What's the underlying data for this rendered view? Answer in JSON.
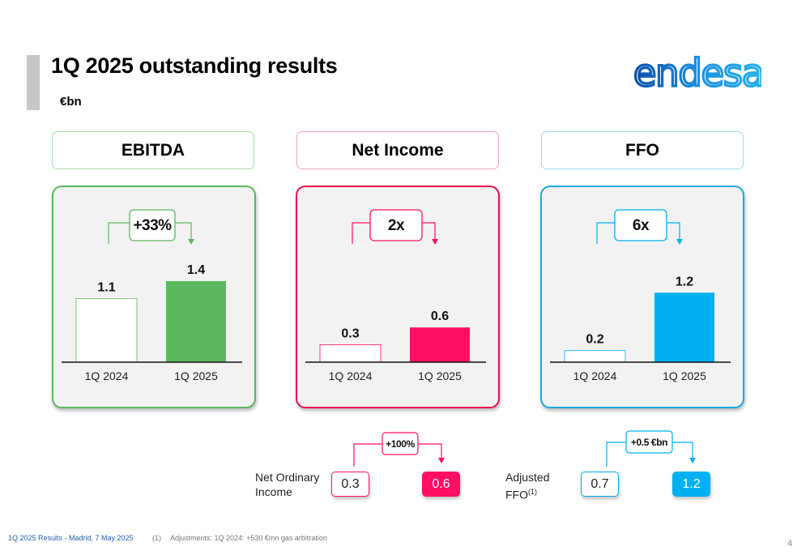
{
  "header": {
    "title": "1Q 2025 outstanding results",
    "unit": "€bn",
    "logo_text": "endesa"
  },
  "chart_data": [
    {
      "type": "bar",
      "title": "EBITDA",
      "categories": [
        "1Q 2024",
        "1Q 2025"
      ],
      "values": [
        1.1,
        1.4
      ],
      "value_labels": [
        "1.1",
        "1.4"
      ],
      "change_label": "+33%",
      "color": "#5cb85c",
      "border_color": "#5cb85c"
    },
    {
      "type": "bar",
      "title": "Net Income",
      "categories": [
        "1Q 2024",
        "1Q 2025"
      ],
      "values": [
        0.3,
        0.6
      ],
      "value_labels": [
        "0.3",
        "0.6"
      ],
      "change_label": "2x",
      "color": "#ff0f64",
      "border_color": "#e8114f"
    },
    {
      "type": "bar",
      "title": "FFO",
      "categories": [
        "1Q 2024",
        "1Q 2025"
      ],
      "values": [
        0.2,
        1.2
      ],
      "value_labels": [
        "0.2",
        "1.2"
      ],
      "change_label": "6x",
      "color": "#00b0f0",
      "border_color": "#1ba9e1"
    }
  ],
  "sub_metrics": [
    {
      "label_line1": "Net Ordinary",
      "label_line2": "Income",
      "label_sup": "",
      "from": "0.3",
      "to": "0.6",
      "change": "+100%",
      "color": "#ff0f64"
    },
    {
      "label_line1": "Adjusted",
      "label_line2": "FFO",
      "label_sup": "(1)",
      "from": "0.7",
      "to": "1.2",
      "change": "+0.5 €bn",
      "color": "#00b0f0"
    }
  ],
  "footer": {
    "source": "1Q 2025 Results - Madrid, 7 May 2025",
    "note_number": "(1)",
    "note_text": "Adjustments: 1Q 2024: +530 €mn gas arbitration",
    "page": "4"
  }
}
